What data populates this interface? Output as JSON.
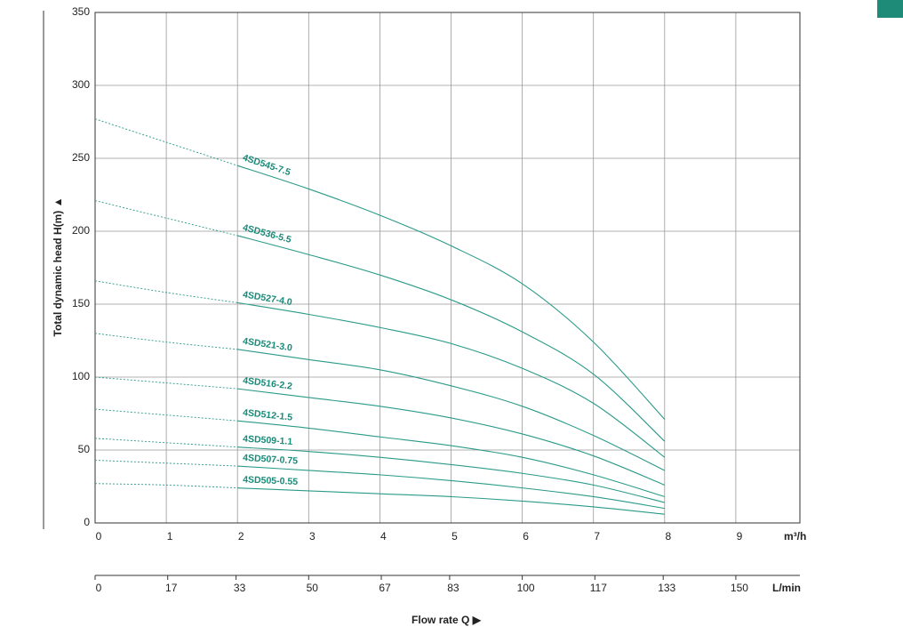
{
  "chart_data": {
    "type": "line",
    "y_label": "Total dynamic head H(m) ▲",
    "x_label": "Flow rate Q ▶",
    "x_unit": "m³/h",
    "x2_unit": "L/min",
    "x": [
      0,
      1,
      2,
      3,
      4,
      5,
      6,
      7,
      8
    ],
    "xlim": [
      0,
      9.9
    ],
    "xticks": [
      0,
      1,
      2,
      3,
      4,
      5,
      6,
      7,
      8,
      9
    ],
    "x2lim": [
      0,
      165
    ],
    "x2ticks": [
      0,
      17,
      33,
      50,
      67,
      83,
      100,
      117,
      133,
      150
    ],
    "ylim": [
      0,
      350
    ],
    "yticks": [
      0,
      50,
      100,
      150,
      200,
      250,
      300,
      350
    ],
    "grid": true,
    "dotted_below_x": 2,
    "color": "#2a9a88",
    "series": [
      {
        "name": "4SD545-7.5",
        "values": [
          277,
          261,
          245,
          229,
          211,
          190,
          164,
          124,
          71
        ]
      },
      {
        "name": "4SD536-5.5",
        "values": [
          221,
          209,
          197,
          184,
          170,
          153,
          131,
          102,
          56
        ]
      },
      {
        "name": "4SD527-4.0",
        "values": [
          166,
          158,
          151,
          143,
          134,
          123,
          106,
          82,
          45
        ]
      },
      {
        "name": "4SD521-3.0",
        "values": [
          130,
          124,
          119,
          112,
          105,
          94,
          80,
          60,
          36
        ]
      },
      {
        "name": "4SD516-2.2",
        "values": [
          100,
          96,
          92,
          86,
          80,
          72,
          61,
          46,
          26
        ]
      },
      {
        "name": "4SD512-1.5",
        "values": [
          78,
          74,
          70,
          65,
          59,
          53,
          45,
          33,
          18
        ]
      },
      {
        "name": "4SD509-1.1",
        "values": [
          58,
          55,
          52,
          49,
          45,
          40,
          34,
          26,
          14
        ]
      },
      {
        "name": "4SD507-0.75",
        "values": [
          43,
          41,
          39,
          36,
          33,
          29,
          24,
          18,
          10
        ]
      },
      {
        "name": "4SD505-0.55",
        "values": [
          27,
          26,
          24,
          22,
          20,
          18,
          15,
          11,
          6
        ]
      }
    ]
  }
}
